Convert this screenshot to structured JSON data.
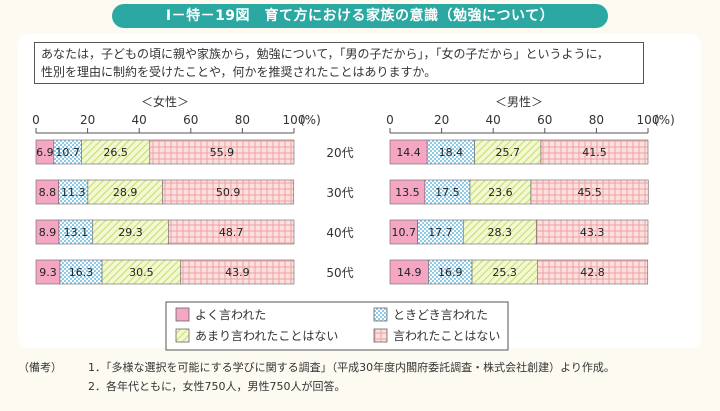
{
  "header": {
    "title": "Ⅰ－特－19図　育て方における家族の意識（勉強について）"
  },
  "question": {
    "line1": "あなたは，子どもの頃に親や家族から，勉強について，「男の子だから」，「女の子だから」というように，",
    "line2": "性別を理由に制約を受けたことや，何かを推奨されたことはありますか。"
  },
  "chart_data": [
    {
      "type": "bar",
      "orientation": "horizontal",
      "stacked": true,
      "title": "＜女性＞",
      "categories": [
        "20代",
        "30代",
        "40代",
        "50代"
      ],
      "xlim": [
        0,
        100
      ],
      "x_ticks": [
        "0",
        "20",
        "40",
        "60",
        "80",
        "100"
      ],
      "x_unit": "(%)",
      "series": [
        {
          "name": "よく言われた",
          "values": [
            6.9,
            8.8,
            8.9,
            9.3
          ]
        },
        {
          "name": "ときどき言われた",
          "values": [
            10.7,
            11.3,
            13.1,
            16.3
          ]
        },
        {
          "name": "あまり言われたことはない",
          "values": [
            26.5,
            28.9,
            29.3,
            30.5
          ]
        },
        {
          "name": "言われたことはない",
          "values": [
            55.9,
            50.9,
            48.7,
            43.9
          ]
        }
      ]
    },
    {
      "type": "bar",
      "orientation": "horizontal",
      "stacked": true,
      "title": "＜男性＞",
      "categories": [
        "20代",
        "30代",
        "40代",
        "50代"
      ],
      "xlim": [
        0,
        100
      ],
      "x_ticks": [
        "0",
        "20",
        "40",
        "60",
        "80",
        "100"
      ],
      "x_unit": "(%)",
      "series": [
        {
          "name": "よく言われた",
          "values": [
            14.4,
            13.5,
            10.7,
            14.9
          ]
        },
        {
          "name": "ときどき言われた",
          "values": [
            18.4,
            17.5,
            17.7,
            16.9
          ]
        },
        {
          "name": "あまり言われたことはない",
          "values": [
            25.7,
            23.6,
            28.3,
            25.3
          ]
        },
        {
          "name": "言われたことはない",
          "values": [
            41.5,
            45.5,
            43.3,
            42.8
          ]
        }
      ]
    }
  ],
  "colors": {
    "often": "#f4a6c3",
    "sometimes": "#bfe2f4",
    "rarely": "#e9f3b0",
    "never": "#f8c6c6",
    "header_bg": "#2ba8a1"
  },
  "legend": {
    "items": [
      "よく言われた",
      "ときどき言われた",
      "あまり言われたことはない",
      "言われたことはない"
    ]
  },
  "notes": {
    "prefix": "（備考）",
    "line1": "1．「多様な選択を可能にする学びに関する調査」（平成30年度内閣府委託調査・株式会社創建）より作成。",
    "line2": "2．各年代ともに，女性750人，男性750人が回答。"
  }
}
